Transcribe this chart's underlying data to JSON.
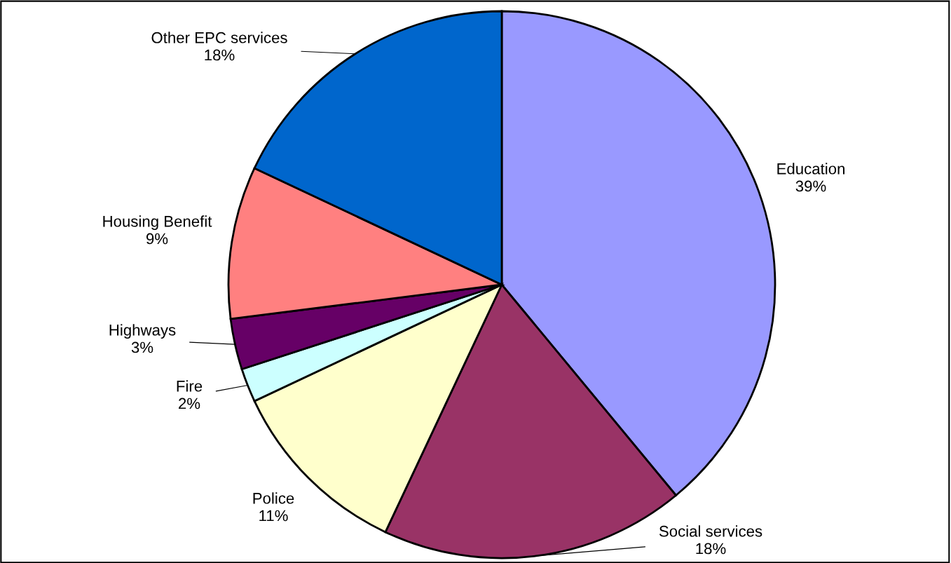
{
  "chart_data": {
    "type": "pie",
    "categories": [
      "Education",
      "Social services",
      "Police",
      "Fire",
      "Highways",
      "Housing Benefit",
      "Other EPC services"
    ],
    "values": [
      39,
      18,
      11,
      2,
      3,
      9,
      18
    ],
    "colors": [
      "#9999ff",
      "#993366",
      "#ffffcc",
      "#ccffff",
      "#660066",
      "#ff8080",
      "#0066cc"
    ],
    "value_labels": [
      "39%",
      "18%",
      "11%",
      "2%",
      "3%",
      "9%",
      "18%"
    ],
    "legend": false
  }
}
